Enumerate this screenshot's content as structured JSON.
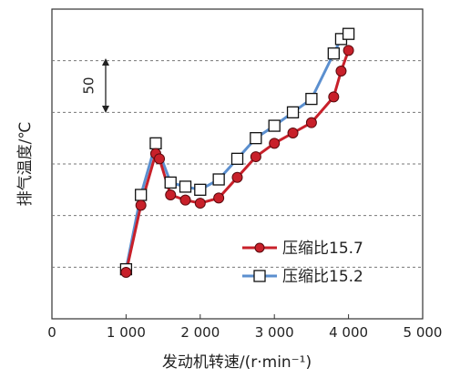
{
  "caption_fragment": "",
  "chart_data": {
    "type": "line",
    "title": "",
    "xlabel": "发动机转速/(r·min⁻¹)",
    "ylabel": "排气温度/℃",
    "xlim": [
      0,
      5000
    ],
    "xticks": [
      0,
      1000,
      2000,
      3000,
      4000,
      5000
    ],
    "xtick_labels": [
      "0",
      "1 000",
      "2 000",
      "3 000",
      "4 000",
      "5 000"
    ],
    "y_units": "℃",
    "ylim": [
      0,
      300
    ],
    "ygrid_values": [
      50,
      100,
      150,
      200,
      250
    ],
    "grid": "horizontal dashed",
    "scale_annotation": "50",
    "legend_position": "bottom-right",
    "series": [
      {
        "name": "压缩比15.7",
        "color": "#c8202a",
        "marker": "filled-circle",
        "x": [
          1000,
          1200,
          1400,
          1450,
          1600,
          1800,
          2000,
          2250,
          2500,
          2750,
          3000,
          3250,
          3500,
          3800,
          3900,
          4000
        ],
        "y": [
          45,
          110,
          160,
          155,
          120,
          115,
          112,
          117,
          137,
          157,
          170,
          180,
          190,
          215,
          240,
          260
        ]
      },
      {
        "name": "压缩比15.2",
        "color": "#5b8fcf",
        "marker": "open-square",
        "x": [
          1000,
          1200,
          1400,
          1600,
          1800,
          2000,
          2250,
          2500,
          2750,
          3000,
          3250,
          3500,
          3800,
          3900,
          4000
        ],
        "y": [
          48,
          120,
          170,
          132,
          128,
          125,
          135,
          155,
          175,
          187,
          200,
          213,
          257,
          271,
          276
        ]
      }
    ]
  }
}
